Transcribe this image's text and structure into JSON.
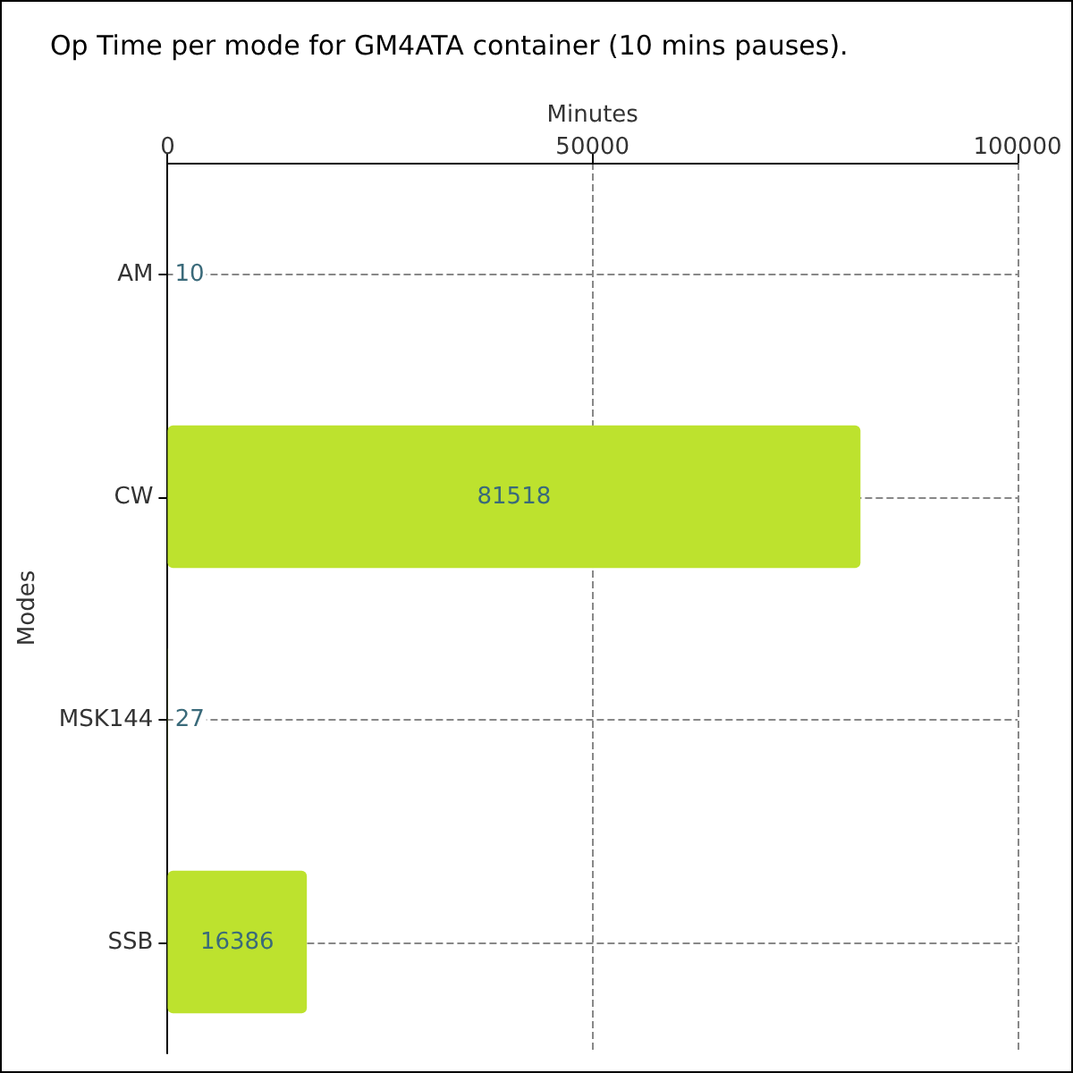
{
  "chart_data": {
    "type": "bar",
    "orientation": "horizontal",
    "title": "Op Time per mode for GM4ATA container (10 mins pauses).",
    "xlabel": "Minutes",
    "ylabel": "Modes",
    "categories": [
      "AM",
      "CW",
      "MSK144",
      "SSB"
    ],
    "values": [
      10,
      81518,
      27,
      16386
    ],
    "color": "#bde22e",
    "xlim": [
      0,
      100000
    ],
    "xticks": [
      0,
      50000,
      100000
    ],
    "grid": true,
    "data_labels": true
  }
}
